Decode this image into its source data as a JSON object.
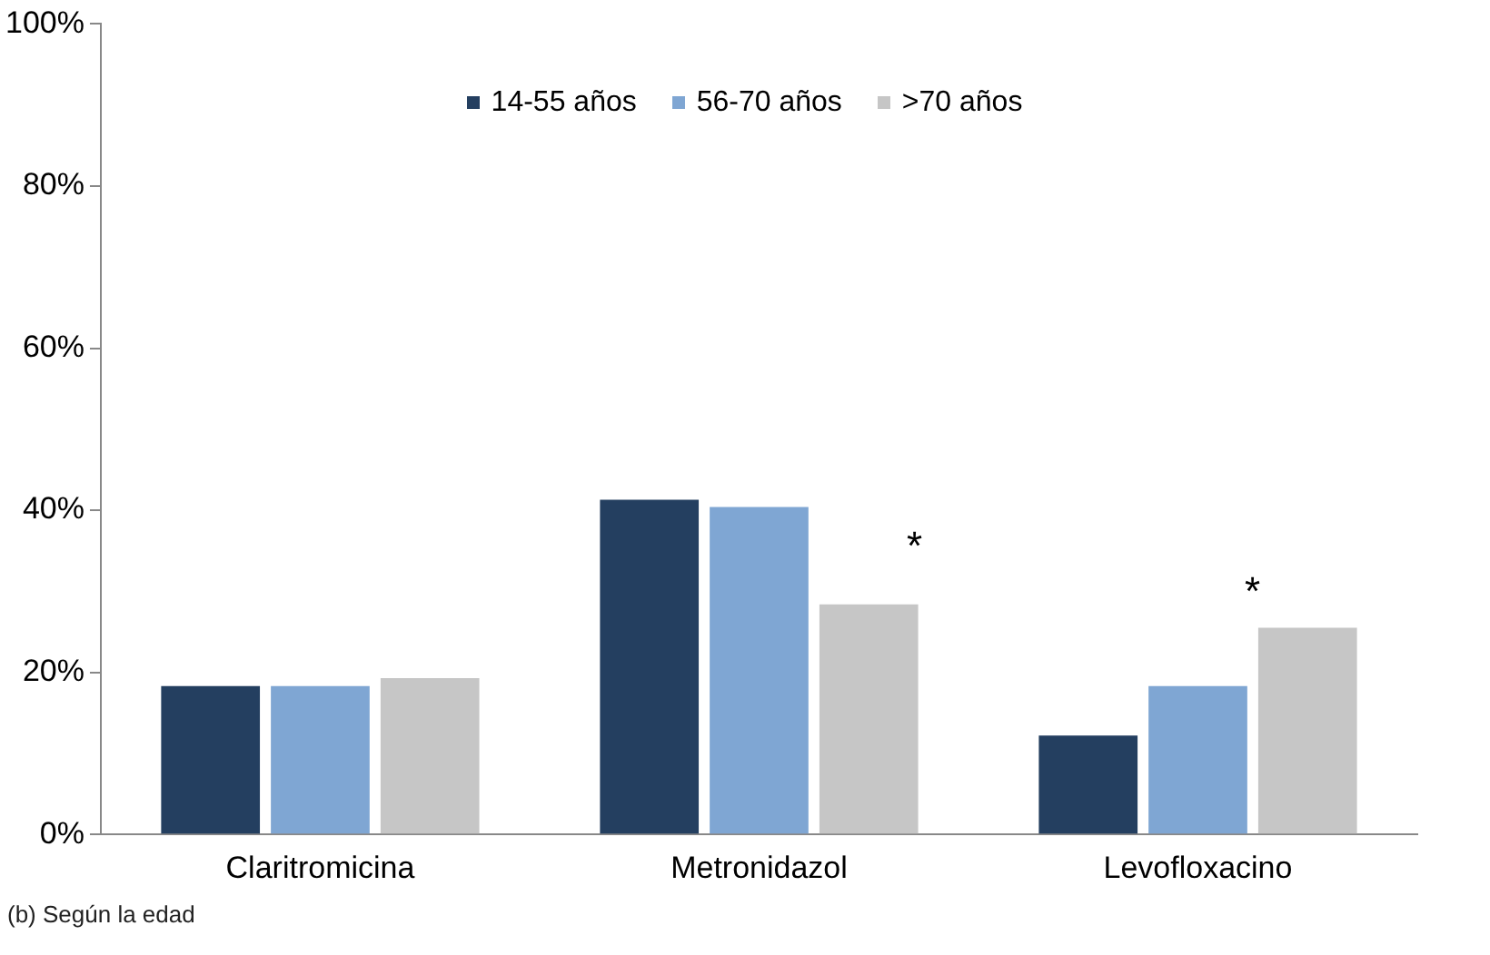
{
  "chart_data": {
    "type": "bar",
    "categories": [
      "Claritromicina",
      "Metronidazol",
      "Levofloxacino"
    ],
    "series": [
      {
        "name": "14-55 años",
        "color": "#243f60",
        "values": [
          18.3,
          41.3,
          12.2
        ]
      },
      {
        "name": "56-70 años",
        "color": "#7fa6d3",
        "values": [
          18.3,
          40.4,
          18.3
        ]
      },
      {
        "name": ">70 años",
        "color": "#c6c6c6",
        "values": [
          19.3,
          28.4,
          25.5
        ]
      }
    ],
    "ylim": [
      0,
      100
    ],
    "yticks": [
      {
        "value": 0,
        "label": "0%"
      },
      {
        "value": 20,
        "label": "20%"
      },
      {
        "value": 40,
        "label": "40%"
      },
      {
        "value": 60,
        "label": "60%"
      },
      {
        "value": 80,
        "label": "80%"
      },
      {
        "value": 100,
        "label": "100%"
      }
    ],
    "grid": false,
    "legend": "top",
    "annotations": [
      "*",
      "*",
      "(b) Según la edad"
    ]
  }
}
